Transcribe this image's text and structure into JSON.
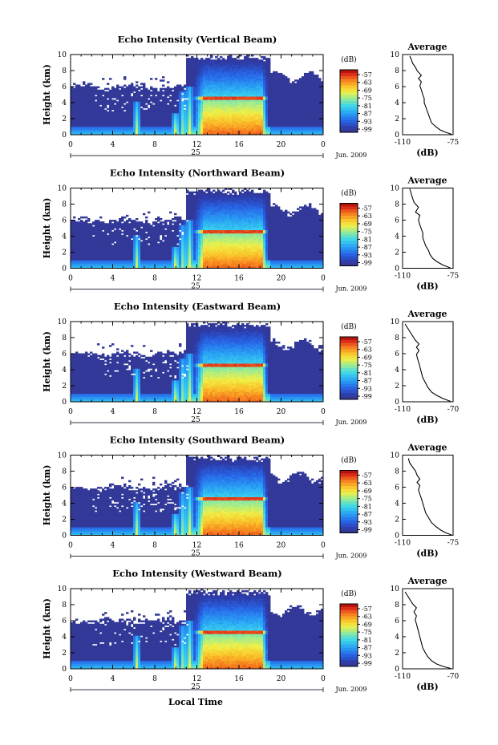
{
  "chart_data": [
    {
      "type": "heatmap",
      "title": "Echo Intensity (Vertical Beam)",
      "ylabel": "Height (km)",
      "y_ticks": [
        "0",
        "2",
        "4",
        "6",
        "8",
        "10"
      ],
      "x_ticks": [
        "0",
        "4",
        "8",
        "12",
        "16",
        "20",
        "0"
      ],
      "ylim": [
        0,
        10
      ],
      "xlim": [
        0,
        24
      ],
      "date_day": "25",
      "date_month": "Jun. 2009",
      "colorbar": {
        "unit": "(dB)",
        "ticks": [
          "-57",
          "-63",
          "-69",
          "-75",
          "-81",
          "-87",
          "-93",
          "-99"
        ],
        "range": [
          -99,
          -57
        ]
      },
      "profile": {
        "title": "Average",
        "xlabel": "(dB)",
        "x_ticks": [
          "-110",
          "-75"
        ],
        "y_ticks": [
          "0",
          "2",
          "4",
          "6",
          "8",
          "10"
        ],
        "xlim": [
          -110,
          -75
        ],
        "points": [
          [
            -105,
            9.8
          ],
          [
            -104,
            9.4
          ],
          [
            -103,
            8.9
          ],
          [
            -101,
            8.4
          ],
          [
            -100,
            8.0
          ],
          [
            -97,
            7.4
          ],
          [
            -99,
            7.0
          ],
          [
            -97,
            6.6
          ],
          [
            -98,
            6.1
          ],
          [
            -97,
            5.6
          ],
          [
            -96,
            5.0
          ],
          [
            -95,
            4.5
          ],
          [
            -95,
            4.0
          ],
          [
            -94,
            3.5
          ],
          [
            -93,
            3.0
          ],
          [
            -92,
            2.5
          ],
          [
            -91,
            2.0
          ],
          [
            -90,
            1.5
          ],
          [
            -87,
            1.0
          ],
          [
            -84,
            0.6
          ],
          [
            -80,
            0.3
          ],
          [
            -76,
            0.05
          ]
        ]
      }
    },
    {
      "type": "heatmap",
      "title": "Echo Intensity (Northward Beam)",
      "ylabel": "Height (km)",
      "y_ticks": [
        "0",
        "2",
        "4",
        "6",
        "8",
        "10"
      ],
      "x_ticks": [
        "0",
        "4",
        "8",
        "12",
        "16",
        "20",
        "0"
      ],
      "ylim": [
        0,
        10
      ],
      "xlim": [
        0,
        24
      ],
      "date_day": "25",
      "date_month": "Jun. 2009",
      "colorbar": {
        "unit": "(dB)",
        "ticks": [
          "-57",
          "-63",
          "-69",
          "-75",
          "-81",
          "-87",
          "-93",
          "-99"
        ],
        "range": [
          -99,
          -57
        ]
      },
      "profile": {
        "title": "Average",
        "xlabel": "(dB)",
        "x_ticks": [
          "-110",
          "-75"
        ],
        "y_ticks": [
          "0",
          "2",
          "4",
          "6",
          "8",
          "10"
        ],
        "xlim": [
          -110,
          -75
        ],
        "points": [
          [
            -105,
            9.9
          ],
          [
            -104,
            9.3
          ],
          [
            -103,
            8.7
          ],
          [
            -102,
            8.2
          ],
          [
            -99,
            7.6
          ],
          [
            -101,
            7.0
          ],
          [
            -98,
            6.6
          ],
          [
            -99,
            6.0
          ],
          [
            -98,
            5.4
          ],
          [
            -97,
            4.9
          ],
          [
            -96,
            4.4
          ],
          [
            -96,
            3.8
          ],
          [
            -95,
            3.3
          ],
          [
            -94,
            2.8
          ],
          [
            -92,
            2.2
          ],
          [
            -91,
            1.7
          ],
          [
            -89,
            1.2
          ],
          [
            -86,
            0.8
          ],
          [
            -82,
            0.4
          ],
          [
            -77,
            0.05
          ]
        ]
      }
    },
    {
      "type": "heatmap",
      "title": "Echo Intensity (Eastward Beam)",
      "ylabel": "Height (km)",
      "y_ticks": [
        "0",
        "2",
        "4",
        "6",
        "8",
        "10"
      ],
      "x_ticks": [
        "0",
        "4",
        "8",
        "12",
        "16",
        "20",
        "0"
      ],
      "ylim": [
        0,
        10
      ],
      "xlim": [
        0,
        24
      ],
      "date_day": "25",
      "date_month": "Jun. 2009",
      "colorbar": {
        "unit": "(dB)",
        "ticks": [
          "-57",
          "-63",
          "-69",
          "-75",
          "-81",
          "-87",
          "-93",
          "-99"
        ],
        "range": [
          -99,
          -57
        ]
      },
      "profile": {
        "title": "Average",
        "xlabel": "(dB)",
        "x_ticks": [
          "-110",
          "-70"
        ],
        "y_ticks": [
          "0",
          "2",
          "4",
          "6",
          "8",
          "10"
        ],
        "xlim": [
          -110,
          -70
        ],
        "points": [
          [
            -108,
            9.7
          ],
          [
            -106,
            9.2
          ],
          [
            -104,
            8.7
          ],
          [
            -102,
            8.2
          ],
          [
            -100,
            7.7
          ],
          [
            -97,
            7.2
          ],
          [
            -99,
            6.8
          ],
          [
            -97,
            6.4
          ],
          [
            -99,
            5.9
          ],
          [
            -98,
            5.3
          ],
          [
            -97,
            4.8
          ],
          [
            -96,
            4.2
          ],
          [
            -95,
            3.6
          ],
          [
            -94,
            3.0
          ],
          [
            -92,
            2.4
          ],
          [
            -90,
            1.8
          ],
          [
            -87,
            1.2
          ],
          [
            -83,
            0.8
          ],
          [
            -78,
            0.4
          ],
          [
            -72,
            0.05
          ]
        ]
      }
    },
    {
      "type": "heatmap",
      "title": "Echo Intensity (Southward Beam)",
      "ylabel": "Height (km)",
      "y_ticks": [
        "0",
        "2",
        "4",
        "6",
        "8",
        "10"
      ],
      "x_ticks": [
        "0",
        "4",
        "8",
        "12",
        "16",
        "20",
        "0"
      ],
      "ylim": [
        0,
        10
      ],
      "xlim": [
        0,
        24
      ],
      "date_day": "25",
      "date_month": "Jun. 2009",
      "colorbar": {
        "unit": "(dB)",
        "ticks": [
          "-57",
          "-63",
          "-69",
          "-75",
          "-81",
          "-87",
          "-93",
          "-99"
        ],
        "range": [
          -99,
          -57
        ]
      },
      "profile": {
        "title": "Average",
        "xlabel": "(dB)",
        "x_ticks": [
          "-110",
          "-75"
        ],
        "y_ticks": [
          "0",
          "2",
          "4",
          "6",
          "8",
          "10"
        ],
        "xlim": [
          -110,
          -75
        ],
        "points": [
          [
            -106,
            9.6
          ],
          [
            -105,
            9.0
          ],
          [
            -103,
            8.5
          ],
          [
            -101,
            8.0
          ],
          [
            -100,
            7.5
          ],
          [
            -98,
            7.0
          ],
          [
            -100,
            6.6
          ],
          [
            -98,
            6.2
          ],
          [
            -99,
            5.7
          ],
          [
            -98,
            5.1
          ],
          [
            -97,
            4.6
          ],
          [
            -96,
            4.0
          ],
          [
            -95,
            3.4
          ],
          [
            -94,
            2.8
          ],
          [
            -92,
            2.2
          ],
          [
            -90,
            1.6
          ],
          [
            -87,
            1.1
          ],
          [
            -84,
            0.7
          ],
          [
            -80,
            0.3
          ],
          [
            -76,
            0.05
          ]
        ]
      }
    },
    {
      "type": "heatmap",
      "title": "Echo Intensity (Westward Beam)",
      "ylabel": "Height (km)",
      "xlabel": "Local Time",
      "y_ticks": [
        "0",
        "2",
        "4",
        "6",
        "8",
        "10"
      ],
      "x_ticks": [
        "0",
        "4",
        "8",
        "12",
        "16",
        "20",
        "0"
      ],
      "ylim": [
        0,
        10
      ],
      "xlim": [
        0,
        24
      ],
      "date_day": "25",
      "date_month": "Jun. 2009",
      "colorbar": {
        "unit": "(dB)",
        "ticks": [
          "-57",
          "-63",
          "-69",
          "-75",
          "-81",
          "-87",
          "-93",
          "-99"
        ],
        "range": [
          -99,
          -57
        ]
      },
      "profile": {
        "title": "Average",
        "xlabel": "(dB)",
        "x_ticks": [
          "-110",
          "-70"
        ],
        "y_ticks": [
          "0",
          "2",
          "4",
          "6",
          "8",
          "10"
        ],
        "xlim": [
          -110,
          -70
        ],
        "points": [
          [
            -108,
            9.6
          ],
          [
            -106,
            9.1
          ],
          [
            -104,
            8.6
          ],
          [
            -102,
            8.1
          ],
          [
            -99,
            7.6
          ],
          [
            -101,
            7.1
          ],
          [
            -99,
            6.6
          ],
          [
            -100,
            6.1
          ],
          [
            -99,
            5.6
          ],
          [
            -98,
            5.0
          ],
          [
            -97,
            4.4
          ],
          [
            -96,
            3.8
          ],
          [
            -95,
            3.2
          ],
          [
            -94,
            2.6
          ],
          [
            -92,
            2.0
          ],
          [
            -90,
            1.5
          ],
          [
            -87,
            1.0
          ],
          [
            -83,
            0.6
          ],
          [
            -78,
            0.3
          ],
          [
            -72,
            0.05
          ]
        ]
      }
    }
  ]
}
